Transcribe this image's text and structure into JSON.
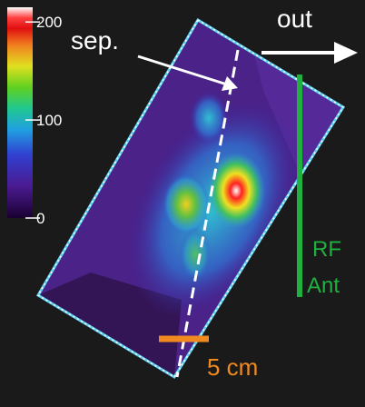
{
  "colorbar": {
    "lim": [
      0,
      215
    ],
    "ticks": [
      0,
      100,
      200
    ]
  },
  "labels": {
    "separatrix": "sep.",
    "direction": "out",
    "antenna": [
      "RF",
      "Ant"
    ],
    "scale": "5 cm"
  }
}
